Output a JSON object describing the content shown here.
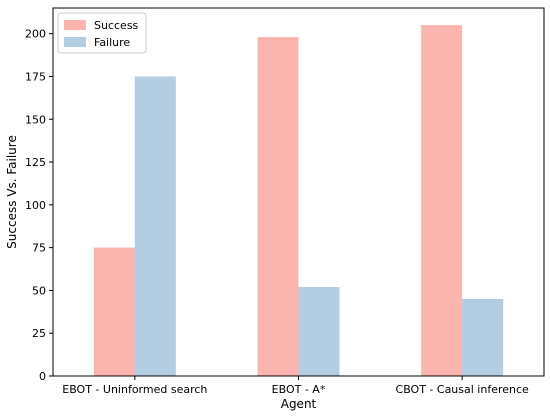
{
  "chart_data": {
    "type": "bar",
    "title": "",
    "xlabel": "Agent",
    "ylabel": "Success Vs. Failure",
    "categories": [
      "EBOT - Uninformed search",
      "EBOT - A*",
      "CBOT - Causal inference"
    ],
    "series": [
      {
        "name": "Success",
        "color": "#fbb4ae",
        "values": [
          75,
          198,
          205
        ]
      },
      {
        "name": "Failure",
        "color": "#b3cde3",
        "values": [
          175,
          52,
          45
        ]
      }
    ],
    "ylim": [
      0,
      215
    ],
    "yticks": [
      "0",
      "25",
      "50",
      "75",
      "100",
      "125",
      "150",
      "175",
      "200"
    ],
    "grid": false,
    "legend_position": "top-left"
  }
}
